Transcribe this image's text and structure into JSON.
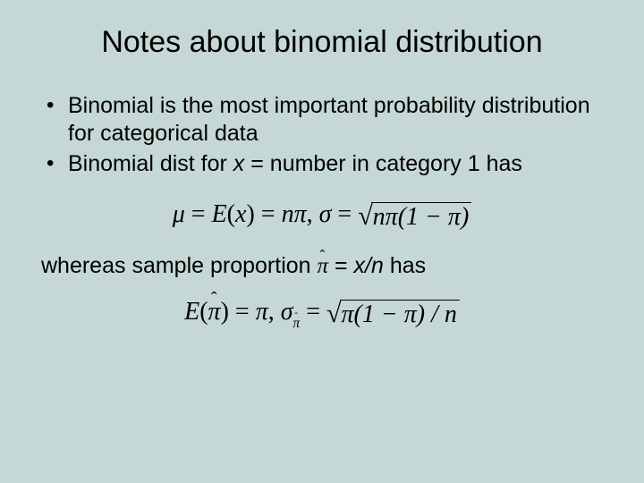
{
  "background_color": "#c5d8d5",
  "text_color": "#000000",
  "title": {
    "text": "Notes about binomial distribution",
    "fontsize": 34
  },
  "bullets": [
    {
      "text": "Binomial is the most important probability distribution for categorical data"
    },
    {
      "pre": "Binomial dist for ",
      "var": "x",
      "post": " = number in category 1 has"
    }
  ],
  "formula1": {
    "lhs1": "μ",
    "eq1a": " = ",
    "ex": "E",
    "parenx": "(x)",
    "eq1b": " = ",
    "npi": "nπ",
    "comma": ",   ",
    "sigma": "σ",
    "eq2": " = ",
    "radicand": "nπ(1 − π)"
  },
  "line_after": {
    "pre": "whereas sample proportion  ",
    "post": " = x/n has"
  },
  "formula2": {
    "E": "E",
    "open": "(",
    "close": ")",
    "eq1": " = ",
    "pi": "π",
    "comma": ",   ",
    "sigma": "σ",
    "eq2": " = ",
    "radicand": "π(1 − π) / n"
  },
  "body_fontsize": 25,
  "formula_fontsize": 28
}
